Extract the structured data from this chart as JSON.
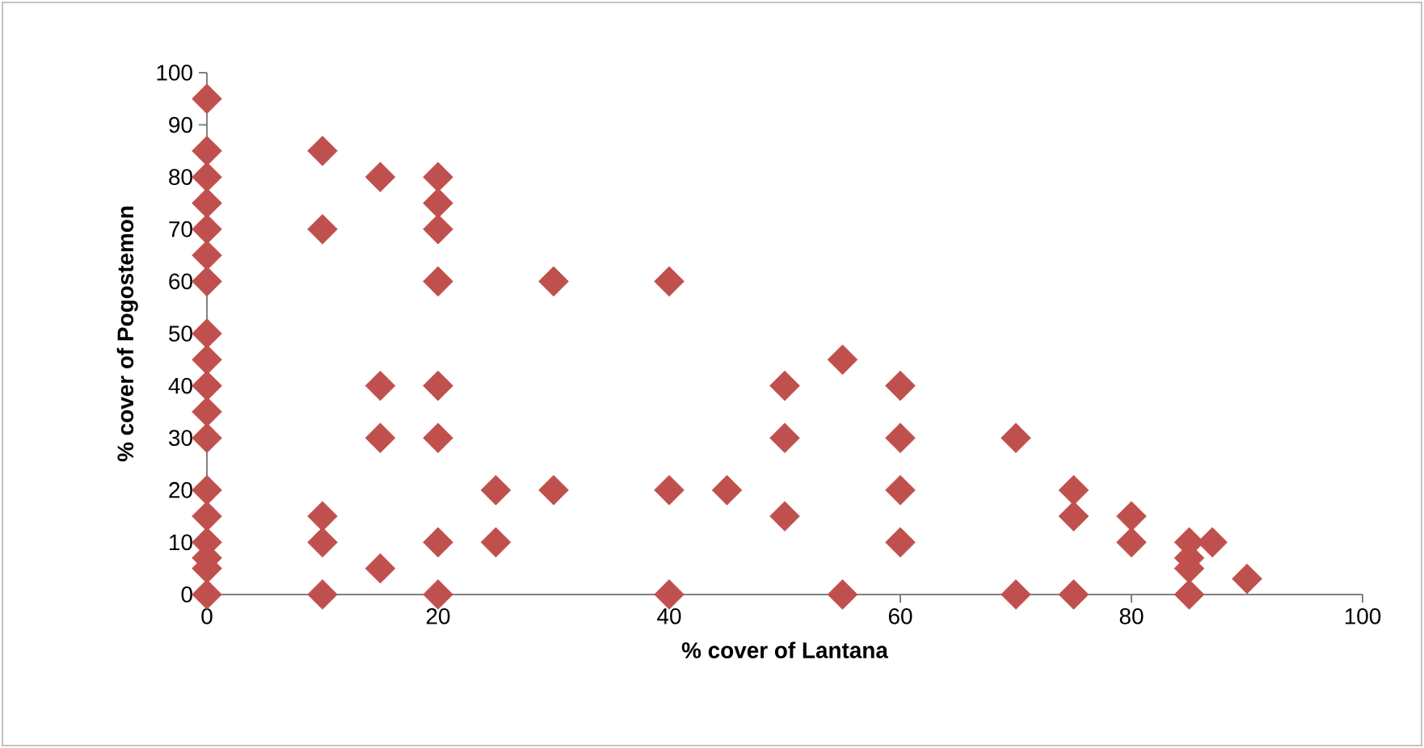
{
  "chart_data": {
    "type": "scatter",
    "xlabel": "% cover of Lantana",
    "ylabel": "% cover of Pogostemon",
    "x": [
      0,
      0,
      0,
      0,
      0,
      0,
      0,
      0,
      0,
      0,
      0,
      0,
      0,
      0,
      0,
      0,
      0,
      0,
      10,
      10,
      10,
      10,
      10,
      15,
      15,
      15,
      15,
      20,
      20,
      20,
      20,
      20,
      20,
      20,
      20,
      25,
      25,
      30,
      30,
      40,
      40,
      40,
      45,
      50,
      50,
      50,
      55,
      55,
      60,
      60,
      60,
      60,
      70,
      70,
      75,
      75,
      75,
      80,
      80,
      85,
      85,
      85,
      85,
      87,
      90
    ],
    "values": [
      95,
      85,
      80,
      75,
      70,
      65,
      60,
      50,
      45,
      40,
      35,
      30,
      20,
      15,
      10,
      7,
      5,
      0,
      85,
      70,
      15,
      10,
      0,
      80,
      40,
      30,
      5,
      80,
      75,
      70,
      60,
      40,
      30,
      10,
      0,
      20,
      10,
      60,
      20,
      60,
      20,
      0,
      20,
      40,
      30,
      15,
      45,
      0,
      40,
      30,
      20,
      10,
      30,
      0,
      20,
      15,
      0,
      15,
      10,
      10,
      7,
      5,
      0,
      10,
      3
    ],
    "color": "#c0504d",
    "marker": "diamond",
    "xlim": [
      0,
      100
    ],
    "ylim": [
      0,
      100
    ],
    "xticks": [
      0,
      20,
      40,
      60,
      80,
      100
    ],
    "yticks": [
      0,
      10,
      20,
      30,
      40,
      50,
      60,
      70,
      80,
      90,
      100
    ],
    "grid": false
  }
}
